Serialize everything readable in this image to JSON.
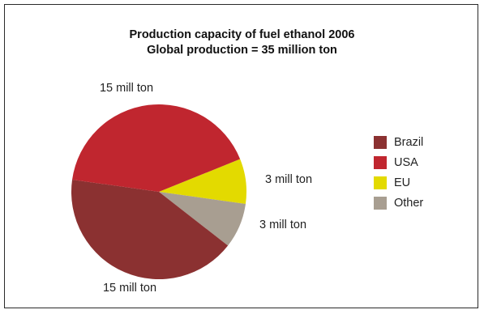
{
  "chart_data": {
    "type": "pie",
    "title": "Production capacity of fuel ethanol 2006",
    "subtitle": "Global production = 35 million ton",
    "categories": [
      "Brazil",
      "USA",
      "EU",
      "Other"
    ],
    "values": [
      15,
      15,
      3,
      3
    ],
    "data_labels": [
      "15 mill ton",
      "15 mill ton",
      "3 mill ton",
      "3 mill ton"
    ],
    "colors": [
      "#8b3131",
      "#c0262f",
      "#e3da00",
      "#a89e91"
    ],
    "legend": "right"
  }
}
